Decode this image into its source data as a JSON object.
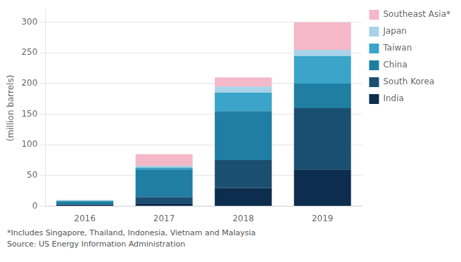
{
  "chart_data": {
    "type": "bar",
    "stacked": true,
    "categories": [
      "2016",
      "2017",
      "2018",
      "2019"
    ],
    "series": [
      {
        "name": "India",
        "color": "#0d2d4e",
        "values": [
          2,
          5,
          30,
          60
        ]
      },
      {
        "name": "South Korea",
        "color": "#1a4f72",
        "values": [
          1,
          10,
          45,
          100
        ]
      },
      {
        "name": "China",
        "color": "#1f7ea1",
        "values": [
          5,
          45,
          80,
          40
        ]
      },
      {
        "name": "Taiwan",
        "color": "#3aa5c8",
        "values": [
          1,
          3,
          30,
          45
        ]
      },
      {
        "name": "Japan",
        "color": "#a8d3e8",
        "values": [
          1,
          3,
          10,
          10
        ]
      },
      {
        "name": "Southeast Asia*",
        "color": "#f4b8c8",
        "values": [
          0,
          19,
          15,
          45
        ]
      }
    ],
    "ylabel": "(million barrels)",
    "ylim": [
      0,
      320
    ],
    "yticks": [
      0,
      50,
      100,
      150,
      200,
      250,
      300
    ],
    "grid": true,
    "legend": "right",
    "annotations": [
      "*Includes Singapore, Thailand, Indonesia, Vietnam and Malaysia",
      "Source: US Energy Information Administration"
    ]
  }
}
